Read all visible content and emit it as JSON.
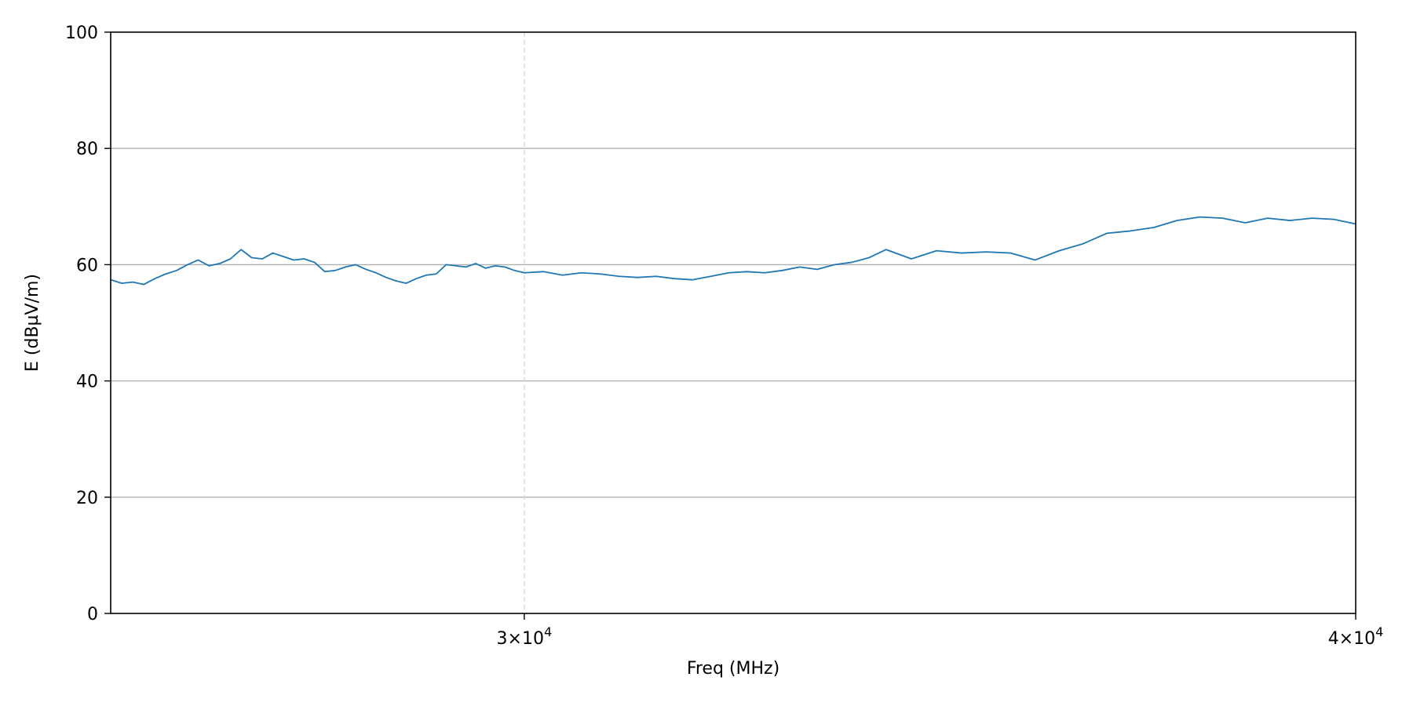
{
  "chart_data": {
    "type": "line",
    "title": "",
    "xlabel": "Freq (MHz)",
    "ylabel": "E (dBµV/m)",
    "xscale": "log",
    "xlim": [
      26000,
      40000
    ],
    "ylim": [
      0,
      100
    ],
    "x_ticks": [
      {
        "value": 30000,
        "mantissa": "3",
        "times": "×",
        "base": "10",
        "exp": "4"
      },
      {
        "value": 40000,
        "mantissa": "4",
        "times": "×",
        "base": "10",
        "exp": "4"
      }
    ],
    "y_ticks": [
      0,
      20,
      40,
      60,
      80,
      100
    ],
    "y_tick_labels": [
      "0",
      "20",
      "40",
      "60",
      "80",
      "100"
    ],
    "grid": {
      "y": "major-solid",
      "x": "minor-dashed"
    },
    "colors": {
      "line": "#1f77b4",
      "grid_major": "#b0b0b0",
      "grid_minor": "#d9d9d9",
      "axes": "#000000"
    },
    "series": [
      {
        "values_x": [
          26000,
          26100,
          26200,
          26300,
          26400,
          26500,
          26600,
          26700,
          26800,
          26900,
          27000,
          27100,
          27200,
          27300,
          27400,
          27500,
          27600,
          27700,
          27800,
          27900,
          28000,
          28100,
          28200,
          28300,
          28400,
          28500,
          28600,
          28700,
          28800,
          28900,
          29000,
          29100,
          29200,
          29300,
          29400,
          29500,
          29600,
          29700,
          29800,
          29900,
          30000,
          30200,
          30400,
          30600,
          30800,
          31000,
          31200,
          31400,
          31600,
          31800,
          32000,
          32200,
          32400,
          32600,
          32800,
          33000,
          33200,
          33400,
          33600,
          33800,
          34000,
          34300,
          34600,
          34900,
          35200,
          35500,
          35800,
          36100,
          36400,
          36700,
          37000,
          37300,
          37600,
          37900,
          38200,
          38500,
          38800,
          39100,
          39400,
          39700,
          40000
        ],
        "values_y": [
          57.4,
          56.8,
          57.0,
          56.6,
          57.6,
          58.4,
          59.0,
          60.0,
          60.8,
          59.8,
          60.2,
          61.0,
          62.6,
          61.2,
          61.0,
          62.0,
          61.4,
          60.8,
          61.0,
          60.4,
          58.8,
          59.0,
          59.6,
          60.0,
          59.2,
          58.6,
          57.8,
          57.2,
          56.8,
          57.6,
          58.2,
          58.4,
          60.0,
          59.8,
          59.6,
          60.2,
          59.4,
          59.8,
          59.6,
          59.0,
          58.6,
          58.8,
          58.2,
          58.6,
          58.4,
          58.0,
          57.8,
          58.0,
          57.6,
          57.4,
          58.0,
          58.6,
          58.8,
          58.6,
          59.0,
          59.6,
          59.2,
          60.0,
          60.4,
          61.2,
          62.6,
          61.0,
          62.4,
          62.0,
          62.2,
          62.0,
          60.8,
          62.4,
          63.6,
          65.4,
          65.8,
          66.4,
          67.6,
          68.2,
          68.0,
          67.2,
          68.0,
          67.6,
          68.0,
          67.8,
          67.0
        ]
      }
    ]
  }
}
